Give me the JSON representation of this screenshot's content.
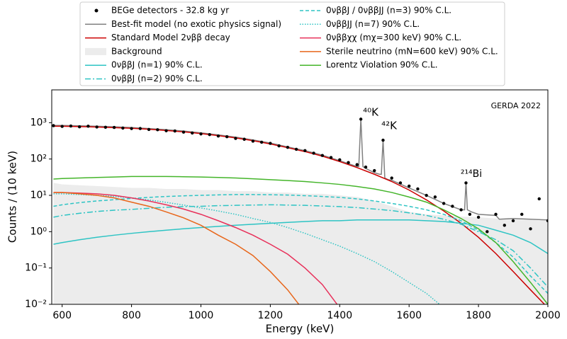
{
  "chart_data": {
    "type": "line",
    "xlabel": "Energy (keV)",
    "ylabel": "Counts / (10 keV)",
    "log_y": true,
    "xlim": [
      570,
      2000
    ],
    "ylim": [
      0.01,
      8000
    ],
    "xticks": [
      600,
      800,
      1000,
      1200,
      1400,
      1600,
      1800,
      2000
    ],
    "yticks": [
      {
        "value": 0.01,
        "label": "10⁻²"
      },
      {
        "value": 0.1,
        "label": "10⁻¹"
      },
      {
        "value": 1,
        "label": "10⁰"
      },
      {
        "value": 10,
        "label": "10¹"
      },
      {
        "value": 100,
        "label": "10²"
      },
      {
        "value": 1000,
        "label": "10³"
      }
    ],
    "annotations": [
      "GERDA 2022",
      "⁴⁰K",
      "⁴²K",
      "²¹⁴Bi"
    ],
    "x": [
      575,
      600,
      650,
      700,
      750,
      800,
      850,
      900,
      950,
      1000,
      1050,
      1100,
      1150,
      1200,
      1250,
      1300,
      1350,
      1400,
      1450,
      1500,
      1550,
      1600,
      1650,
      1700,
      1750,
      1800,
      1850,
      1900,
      1950,
      2000
    ],
    "series": [
      {
        "name": "BEGe detectors - 32.8 kg yr",
        "style": "scatter",
        "color": "#000000",
        "x": [
          575,
          600,
          625,
          650,
          675,
          700,
          725,
          750,
          775,
          800,
          825,
          850,
          875,
          900,
          925,
          950,
          975,
          1000,
          1025,
          1050,
          1075,
          1100,
          1125,
          1150,
          1175,
          1200,
          1225,
          1250,
          1275,
          1300,
          1325,
          1350,
          1375,
          1400,
          1425,
          1450,
          1461,
          1475,
          1500,
          1525,
          1550,
          1575,
          1600,
          1625,
          1650,
          1675,
          1700,
          1725,
          1750,
          1764,
          1775,
          1800,
          1825,
          1850,
          1875,
          1900,
          1925,
          1950,
          1975,
          2000
        ],
        "values": [
          830,
          790,
          810,
          770,
          800,
          760,
          750,
          740,
          710,
          690,
          690,
          650,
          640,
          600,
          590,
          550,
          520,
          490,
          470,
          430,
          410,
          370,
          350,
          310,
          290,
          270,
          230,
          210,
          185,
          170,
          145,
          125,
          110,
          95,
          80,
          70,
          1250,
          60,
          48,
          330,
          30,
          22,
          18,
          15,
          10,
          9,
          6,
          5,
          4,
          22,
          3,
          2.5,
          1,
          3,
          1.5,
          2,
          3,
          1.2,
          8,
          2
        ]
      },
      {
        "name": "Best-fit model (no exotic physics signal)",
        "style": "line",
        "color": "#808080",
        "x": [
          575,
          600,
          650,
          700,
          750,
          800,
          850,
          900,
          950,
          1000,
          1050,
          1100,
          1150,
          1200,
          1250,
          1300,
          1350,
          1400,
          1450,
          1455,
          1461,
          1467,
          1475,
          1500,
          1515,
          1520,
          1525,
          1530,
          1540,
          1550,
          1600,
          1650,
          1700,
          1750,
          1760,
          1764,
          1768,
          1780,
          1800,
          1850,
          1860,
          1900,
          1950,
          2000
        ],
        "values": [
          840,
          840,
          820,
          800,
          770,
          735,
          690,
          640,
          590,
          525,
          460,
          400,
          335,
          275,
          215,
          170,
          128,
          90,
          62,
          62,
          1300,
          62,
          55,
          42,
          38,
          38,
          340,
          30,
          27,
          26,
          16,
          10,
          6,
          4,
          4,
          23,
          4,
          3.5,
          3,
          2.8,
          2.2,
          2.3,
          2.2,
          2.1
        ]
      },
      {
        "name": "Standard Model 2νββ decay",
        "style": "line",
        "color": "#cc0000",
        "values": [
          800,
          800,
          780,
          760,
          730,
          700,
          660,
          610,
          560,
          500,
          440,
          380,
          320,
          260,
          205,
          160,
          120,
          85,
          58,
          38,
          24,
          14,
          7.5,
          3.7,
          1.7,
          0.7,
          0.25,
          0.08,
          0.025,
          0.008
        ]
      },
      {
        "name": "Background",
        "style": "area",
        "color": "#ececec",
        "values": [
          22,
          20,
          19,
          18,
          17,
          16,
          16,
          15,
          15,
          14,
          14,
          13,
          13,
          12,
          12,
          11,
          11,
          10,
          9,
          7,
          5,
          3.5,
          3,
          2.8,
          2.6,
          2.5,
          2.3,
          2.2,
          2.1,
          2
        ]
      },
      {
        "name": "0νββJ (n=1) 90% C.L.",
        "style": "line",
        "color": "#2ec4c4",
        "dash": "none",
        "values": [
          0.45,
          0.5,
          0.6,
          0.7,
          0.8,
          0.9,
          1,
          1.1,
          1.2,
          1.3,
          1.4,
          1.5,
          1.6,
          1.7,
          1.8,
          1.9,
          2,
          2,
          2.1,
          2.1,
          2.1,
          2.1,
          2,
          1.9,
          1.7,
          1.5,
          1.1,
          0.8,
          0.5,
          0.25
        ]
      },
      {
        "name": "0νββJ (n=2) 90% C.L.",
        "style": "line",
        "color": "#2ec4c4",
        "dash": "8 3 2 3",
        "values": [
          2.5,
          2.8,
          3.2,
          3.6,
          3.9,
          4.1,
          4.4,
          4.7,
          4.9,
          5,
          5.2,
          5.3,
          5.4,
          5.5,
          5.4,
          5.3,
          5.1,
          4.9,
          4.6,
          4.2,
          3.8,
          3.3,
          2.8,
          2.2,
          1.6,
          1,
          0.6,
          0.3,
          0.1,
          0.03
        ]
      },
      {
        "name": "0νββJ / 0νββJJ (n=3) 90% C.L.",
        "style": "line",
        "color": "#2ec4c4",
        "dash": "5 3",
        "values": [
          5,
          5.5,
          6.3,
          7,
          7.6,
          8.2,
          8.8,
          9.3,
          9.7,
          10,
          10.3,
          10.5,
          10.5,
          10.4,
          10.2,
          9.8,
          9.3,
          8.8,
          8,
          7,
          6,
          5,
          4,
          3,
          2,
          1.1,
          0.5,
          0.2,
          0.06,
          0.02
        ]
      },
      {
        "name": "0νββJJ (n=7) 90% C.L.",
        "style": "line",
        "color": "#2ec4c4",
        "dash": "1.5 2",
        "values": [
          11,
          11,
          10.5,
          10,
          9.3,
          8.5,
          7.5,
          6.4,
          5.4,
          4.5,
          3.7,
          3,
          2.3,
          1.8,
          1.3,
          0.9,
          0.6,
          0.4,
          0.25,
          0.15,
          0.08,
          0.04,
          0.02,
          0.008,
          null,
          null,
          null,
          null,
          null,
          null
        ]
      },
      {
        "name": "0νββχχ (mχ=300 keV) 90% C.L.",
        "style": "line",
        "color": "#e8305a",
        "values": [
          12,
          12,
          11.5,
          11,
          10,
          8.5,
          7,
          5.5,
          4.2,
          3,
          2,
          1.3,
          0.8,
          0.45,
          0.24,
          0.1,
          0.035,
          0.008,
          null,
          null,
          null,
          null,
          null,
          null,
          null,
          null,
          null,
          null,
          null,
          null
        ]
      },
      {
        "name": "Sterile neutrino (mN=600 keV) 90% C.L.",
        "style": "line",
        "color": "#e8661a",
        "values": [
          12,
          12,
          11,
          10,
          8.5,
          6.5,
          5,
          3.5,
          2.4,
          1.5,
          0.8,
          0.45,
          0.22,
          0.08,
          0.025,
          0.006,
          null,
          null,
          null,
          null,
          null,
          null,
          null,
          null,
          null,
          null,
          null,
          null,
          null,
          null
        ]
      },
      {
        "name": "Lorentz Violation 90% C.L.",
        "style": "line",
        "color": "#44b52a",
        "values": [
          28,
          29,
          30,
          31,
          32,
          33,
          33,
          33,
          32.5,
          32,
          31,
          30,
          28.5,
          27,
          25.5,
          24,
          22,
          20,
          17.5,
          15,
          12,
          9,
          6.5,
          4,
          2.3,
          1.2,
          0.5,
          0.15,
          0.04,
          0.01
        ]
      }
    ]
  }
}
